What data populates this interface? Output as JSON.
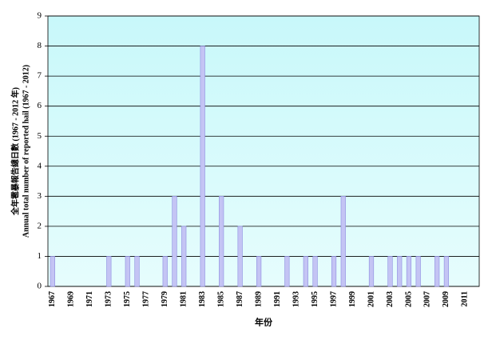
{
  "chart_data": {
    "type": "bar",
    "y_label_zh": "全年雹暴報告總日數 (1967 - 2012 年)",
    "y_label_en": "Annual total number of reported hail (1967 - 2012)",
    "x_label": "年份",
    "categories": [
      "1967",
      null,
      "1969",
      null,
      "1971",
      null,
      "1973",
      null,
      "1975",
      null,
      "1977",
      null,
      "1979",
      null,
      "1981",
      null,
      "1983",
      null,
      "1985",
      null,
      "1987",
      null,
      "1989",
      null,
      "1991",
      null,
      "1993",
      null,
      "1995",
      null,
      "1997",
      null,
      "1999",
      null,
      "2001",
      null,
      "2003",
      null,
      "2005",
      null,
      "2007",
      null,
      "2009",
      null,
      "2011",
      null
    ],
    "values": [
      1,
      0,
      0,
      0,
      0,
      0,
      1,
      0,
      1,
      1,
      0,
      0,
      1,
      3,
      2,
      0,
      8,
      0,
      3,
      0,
      2,
      0,
      1,
      0,
      0,
      1,
      0,
      1,
      1,
      0,
      1,
      3,
      0,
      0,
      1,
      0,
      1,
      1,
      1,
      1,
      0,
      1,
      1,
      0,
      0,
      0
    ],
    "color": "#c4c4f4",
    "ylim": [
      0,
      9
    ],
    "yticks": [
      0,
      1,
      2,
      3,
      4,
      5,
      6,
      7,
      8,
      9
    ],
    "grid": true
  }
}
